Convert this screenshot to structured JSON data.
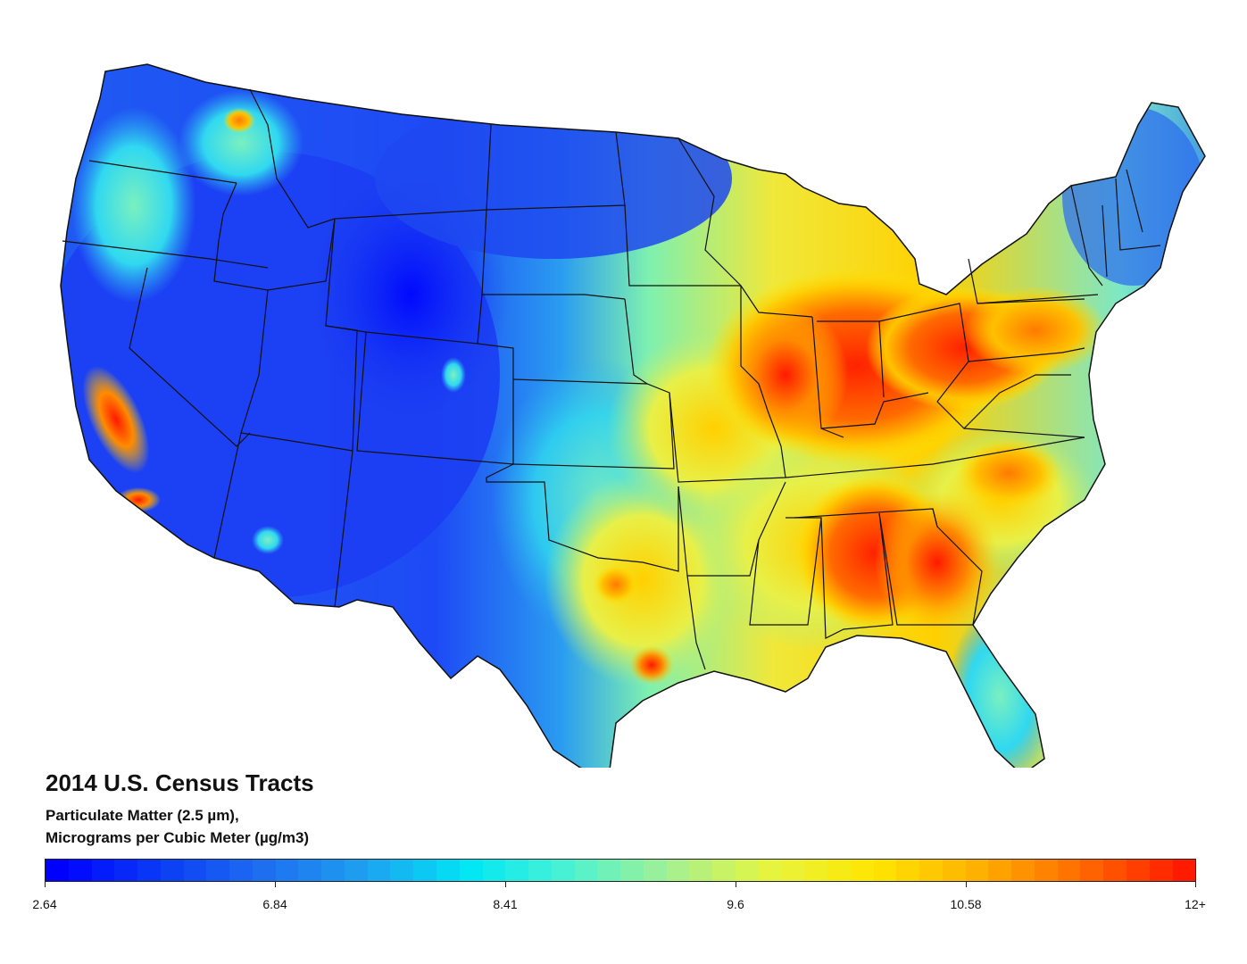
{
  "map": {
    "title": "2014 U.S. Census Tracts",
    "subtitle_line1": "Particulate Matter (2.5 µm),",
    "subtitle_line2": "Micrograms per Cubic Meter (µg/m3)",
    "legend": {
      "labels": [
        "2.64",
        "6.84",
        "8.41",
        "9.6",
        "10.58",
        "12+"
      ],
      "colors": [
        "#0000ff",
        "#0a3cf5",
        "#1e6ef0",
        "#1ea0f0",
        "#00e6f5",
        "#4cf2d2",
        "#a6f090",
        "#e8f53c",
        "#ffe500",
        "#ffb000",
        "#ff6a00",
        "#ff1a00"
      ]
    },
    "hotspot_colors": {
      "low": "#1c3cf0",
      "mid_low": "#2a8cf0",
      "mid": "#49e0e0",
      "mid_high": "#e6f04a",
      "high": "#ff9a00",
      "very_high": "#ff2a00"
    }
  }
}
